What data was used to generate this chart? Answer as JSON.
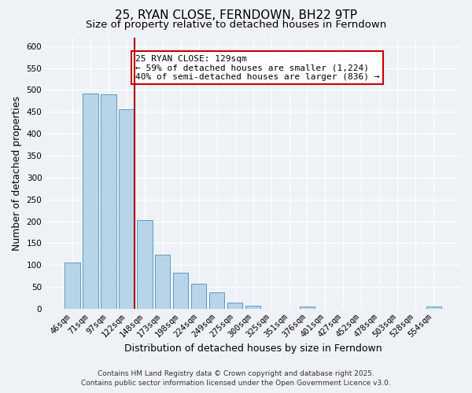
{
  "title": "25, RYAN CLOSE, FERNDOWN, BH22 9TP",
  "subtitle": "Size of property relative to detached houses in Ferndown",
  "xlabel": "Distribution of detached houses by size in Ferndown",
  "ylabel": "Number of detached properties",
  "categories": [
    "46sqm",
    "71sqm",
    "97sqm",
    "122sqm",
    "148sqm",
    "173sqm",
    "198sqm",
    "224sqm",
    "249sqm",
    "275sqm",
    "300sqm",
    "325sqm",
    "351sqm",
    "376sqm",
    "401sqm",
    "427sqm",
    "452sqm",
    "478sqm",
    "503sqm",
    "528sqm",
    "554sqm"
  ],
  "values": [
    105,
    492,
    490,
    455,
    202,
    123,
    82,
    58,
    37,
    15,
    8,
    0,
    0,
    5,
    0,
    0,
    0,
    0,
    0,
    0,
    5
  ],
  "bar_color": "#b8d4e8",
  "bar_edge_color": "#5a9bc4",
  "property_line_color": "#aa0000",
  "annotation_line1": "25 RYAN CLOSE: 129sqm",
  "annotation_line2": "← 59% of detached houses are smaller (1,224)",
  "annotation_line3": "40% of semi-detached houses are larger (836) →",
  "annotation_box_color": "#ffffff",
  "annotation_box_edge_color": "#cc0000",
  "ylim": [
    0,
    620
  ],
  "yticks": [
    0,
    50,
    100,
    150,
    200,
    250,
    300,
    350,
    400,
    450,
    500,
    550,
    600
  ],
  "footer_line1": "Contains HM Land Registry data © Crown copyright and database right 2025.",
  "footer_line2": "Contains public sector information licensed under the Open Government Licence v3.0.",
  "background_color": "#eef2f7",
  "grid_color": "#ffffff",
  "title_fontsize": 11,
  "subtitle_fontsize": 9.5,
  "axis_label_fontsize": 9,
  "tick_fontsize": 7.5,
  "annotation_fontsize": 8,
  "footer_fontsize": 6.5
}
